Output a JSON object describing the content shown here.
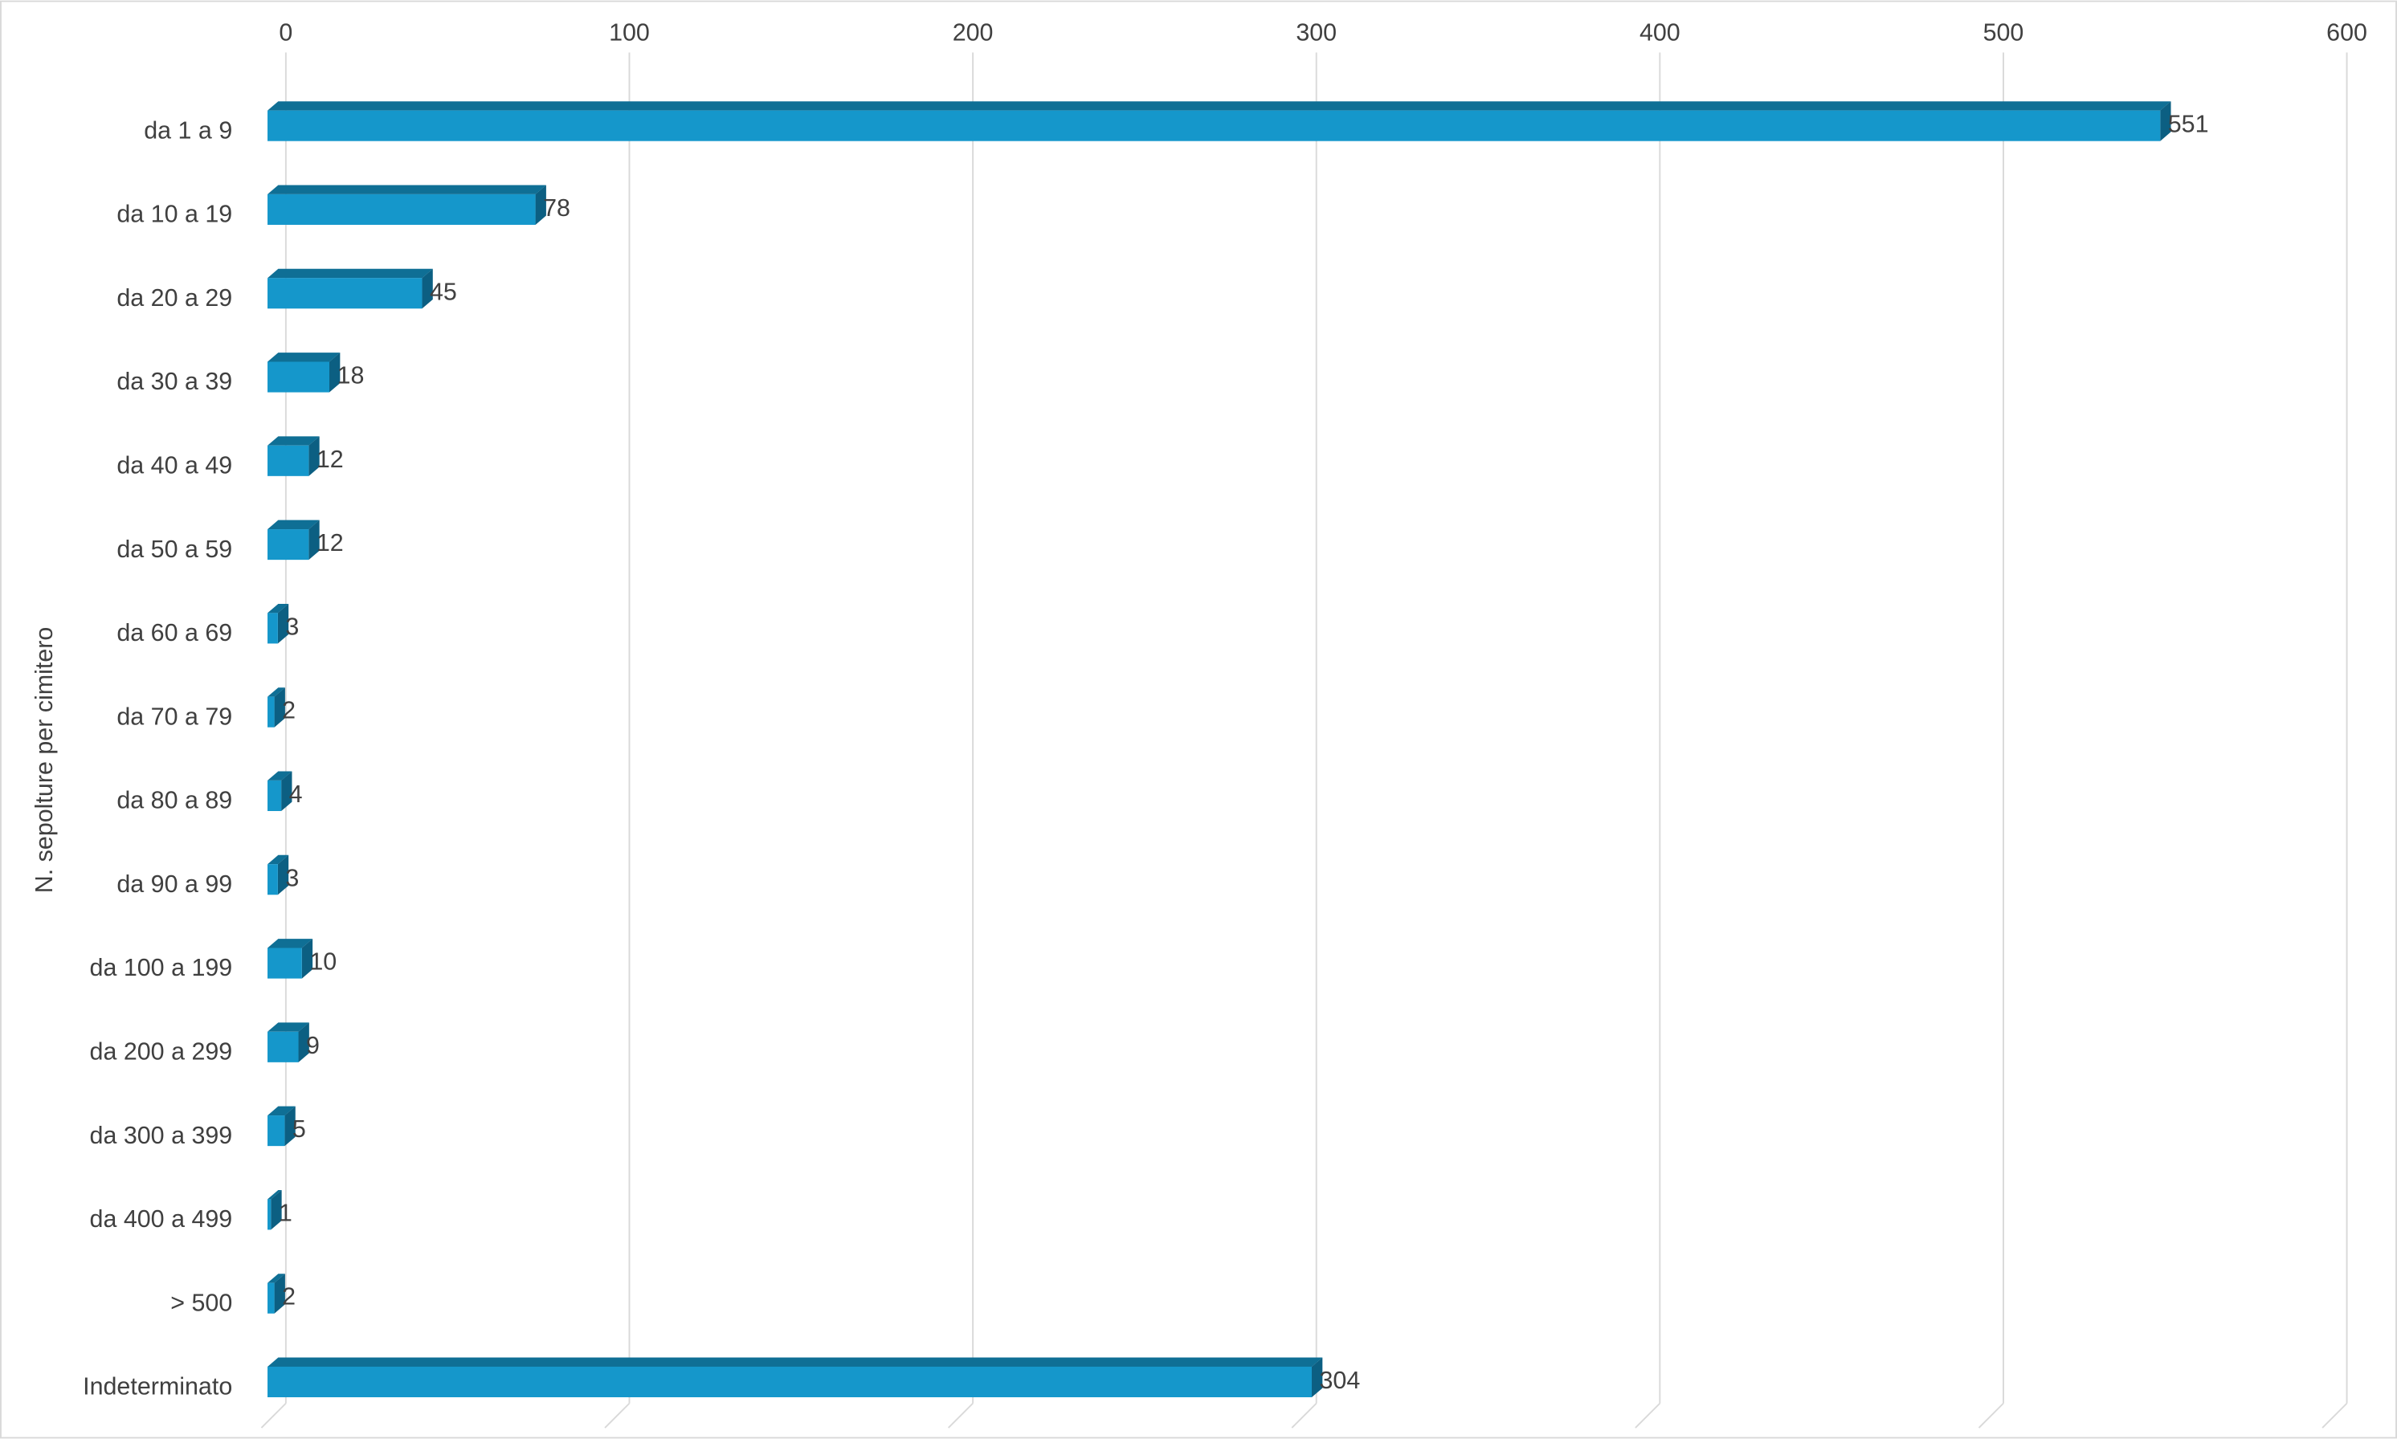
{
  "chart_data": {
    "type": "bar3d",
    "orientation": "horizontal",
    "y_axis_label": "N. sepolture per cimitero",
    "categories": [
      "da 1 a 9",
      "da 10 a 19",
      "da 20 a 29",
      "da 30 a 39",
      "da 40 a 49",
      "da 50 a 59",
      "da 60 a 69",
      "da 70 a 79",
      "da 80 a 89",
      "da 90 a 99",
      "da 100 a 199",
      "da 200 a 299",
      "da 300 a 399",
      "da 400 a 499",
      "> 500",
      "Indeterminato"
    ],
    "values": [
      551,
      78,
      45,
      18,
      12,
      12,
      3,
      2,
      4,
      3,
      10,
      9,
      5,
      1,
      2,
      304
    ],
    "color": "#1597cb",
    "xlim": [
      0,
      600
    ],
    "xticks": [
      0,
      100,
      200,
      300,
      400,
      500,
      600
    ],
    "grid": true
  }
}
